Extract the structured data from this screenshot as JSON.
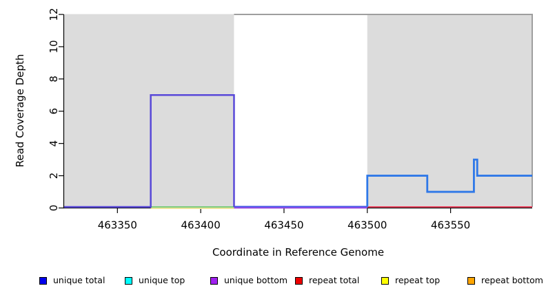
{
  "chart_data": {
    "type": "line",
    "title": "",
    "xlabel": "Coordinate in Reference Genome",
    "ylabel": "Read Coverage Depth",
    "xlim": [
      463318,
      463599
    ],
    "ylim": [
      0,
      12
    ],
    "xticks": [
      463350,
      463400,
      463450,
      463500,
      463550
    ],
    "yticks": [
      0,
      2,
      4,
      6,
      8,
      10,
      12
    ],
    "grid": false,
    "axis_color": "#000000",
    "background_regions": [
      {
        "name": "shaded-left",
        "x0": 463318,
        "x1": 463420,
        "color": "#dcdcdc"
      },
      {
        "name": "white-middle",
        "x0": 463420,
        "x1": 463500,
        "color": "#ffffff"
      },
      {
        "name": "shaded-right",
        "x0": 463500,
        "x1": 463599,
        "color": "#dcdcdc"
      }
    ],
    "series": [
      {
        "name": "boundary-gray-depth12",
        "color": "#9e9e9e",
        "width": 2,
        "dy": 0,
        "points": [
          [
            463420,
            12
          ],
          [
            463599,
            12
          ],
          [
            463599,
            0
          ]
        ]
      },
      {
        "name": "repeat-total",
        "color": "#e8415c",
        "width": 2,
        "dy": 0,
        "points": [
          [
            463500,
            0
          ],
          [
            463599,
            0
          ]
        ]
      },
      {
        "name": "repeat-top-yellow-baseline",
        "color": "#ece49a",
        "width": 3,
        "dy": 1.5,
        "points": [
          [
            463370,
            0
          ],
          [
            463420,
            0
          ]
        ]
      },
      {
        "name": "unique-top-green-baseline",
        "color": "#7ccb7c",
        "width": 2,
        "dy": 0,
        "points": [
          [
            463370,
            0
          ],
          [
            463420,
            0
          ]
        ]
      },
      {
        "name": "unique-bottom-mid",
        "color": "#a048e8",
        "width": 2.5,
        "dy": 1,
        "points": [
          [
            463420,
            0
          ],
          [
            463500,
            0
          ]
        ]
      },
      {
        "name": "unique-total-mid",
        "color": "#4458e6",
        "width": 2,
        "dy": -0.5,
        "points": [
          [
            463420,
            0
          ],
          [
            463500,
            0
          ]
        ]
      },
      {
        "name": "unique-step-left",
        "color": "#5848d8",
        "width": 2.5,
        "dy": 0,
        "points": [
          [
            463318,
            0
          ],
          [
            463370,
            0
          ],
          [
            463370,
            7
          ],
          [
            463420,
            7
          ],
          [
            463420,
            0
          ]
        ]
      },
      {
        "name": "unique-total-right",
        "color": "#2e78e8",
        "width": 2.8,
        "dy": 0,
        "points": [
          [
            463500,
            0
          ],
          [
            463500,
            2
          ],
          [
            463536,
            2
          ],
          [
            463536,
            1
          ],
          [
            463564,
            1
          ],
          [
            463564,
            3
          ],
          [
            463566,
            3
          ],
          [
            463566,
            2
          ],
          [
            463599,
            2
          ]
        ]
      }
    ],
    "legend": {
      "position": "bottom",
      "items": [
        {
          "label": "unique total",
          "color": "#0000ee"
        },
        {
          "label": "unique top",
          "color": "#00ffff"
        },
        {
          "label": "unique bottom",
          "color": "#a020f0"
        },
        {
          "label": "repeat total",
          "color": "#ee0000"
        },
        {
          "label": "repeat top",
          "color": "#ffff00"
        },
        {
          "label": "repeat bottom",
          "color": "#ffa500"
        }
      ]
    }
  }
}
